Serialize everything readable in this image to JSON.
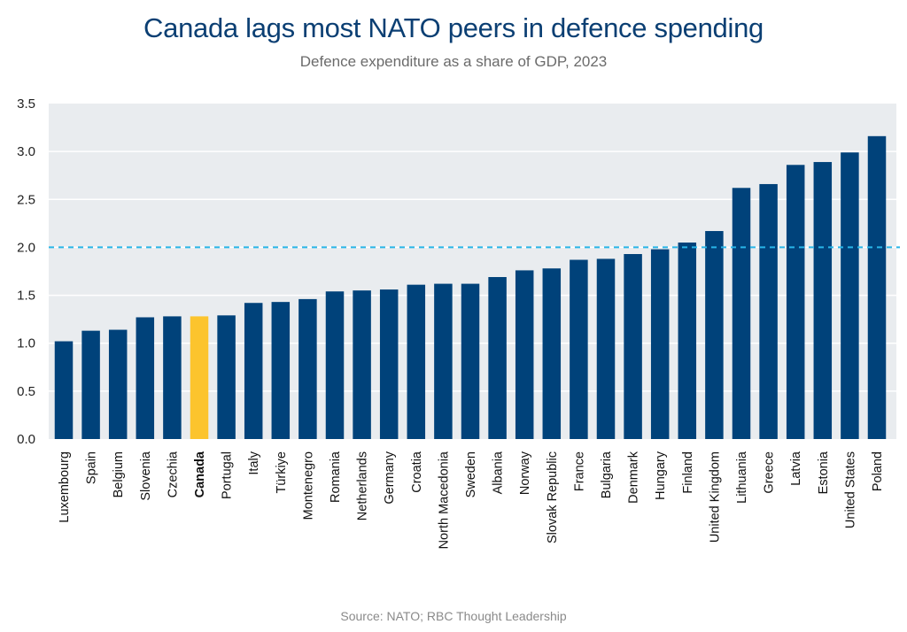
{
  "chart_data": {
    "type": "bar",
    "title": "Canada lags most NATO peers in defence spending",
    "subtitle": "Defence expenditure as a share of GDP, 2023",
    "source": "Source: NATO; RBC Thought Leadership",
    "xlabel": "",
    "ylabel": "",
    "ylim": [
      0,
      3.5
    ],
    "yticks": [
      "0.0",
      "0.5",
      "1.0",
      "1.5",
      "2.0",
      "2.5",
      "3.0",
      "3.5"
    ],
    "grid": true,
    "reference_line": {
      "value": 2.0,
      "style": "dashed",
      "color": "#29b5e8"
    },
    "colors": {
      "bar": "#00427a",
      "highlight": "#fcc42d",
      "plot_background": "#e9ecef",
      "title": "#0b3f73"
    },
    "highlight_category": "Canada",
    "categories": [
      "Luxembourg",
      "Spain",
      "Belgium",
      "Slovenia",
      "Czechia",
      "Canada",
      "Portugal",
      "Italy",
      "Türkiye",
      "Montenegro",
      "Romania",
      "Netherlands",
      "Germany",
      "Croatia",
      "North Macedonia",
      "Sweden",
      "Albania",
      "Norway",
      "Slovak Republic",
      "France",
      "Bulgaria",
      "Denmark",
      "Hungary",
      "Finland",
      "United Kingdom",
      "Lithuania",
      "Greece",
      "Latvia",
      "Estonia",
      "United States",
      "Poland"
    ],
    "values": [
      1.02,
      1.13,
      1.14,
      1.27,
      1.28,
      1.28,
      1.29,
      1.42,
      1.43,
      1.46,
      1.54,
      1.55,
      1.56,
      1.61,
      1.62,
      1.62,
      1.69,
      1.76,
      1.78,
      1.87,
      1.88,
      1.93,
      1.98,
      2.05,
      2.17,
      2.62,
      2.66,
      2.86,
      2.89,
      2.99,
      3.16
    ]
  }
}
